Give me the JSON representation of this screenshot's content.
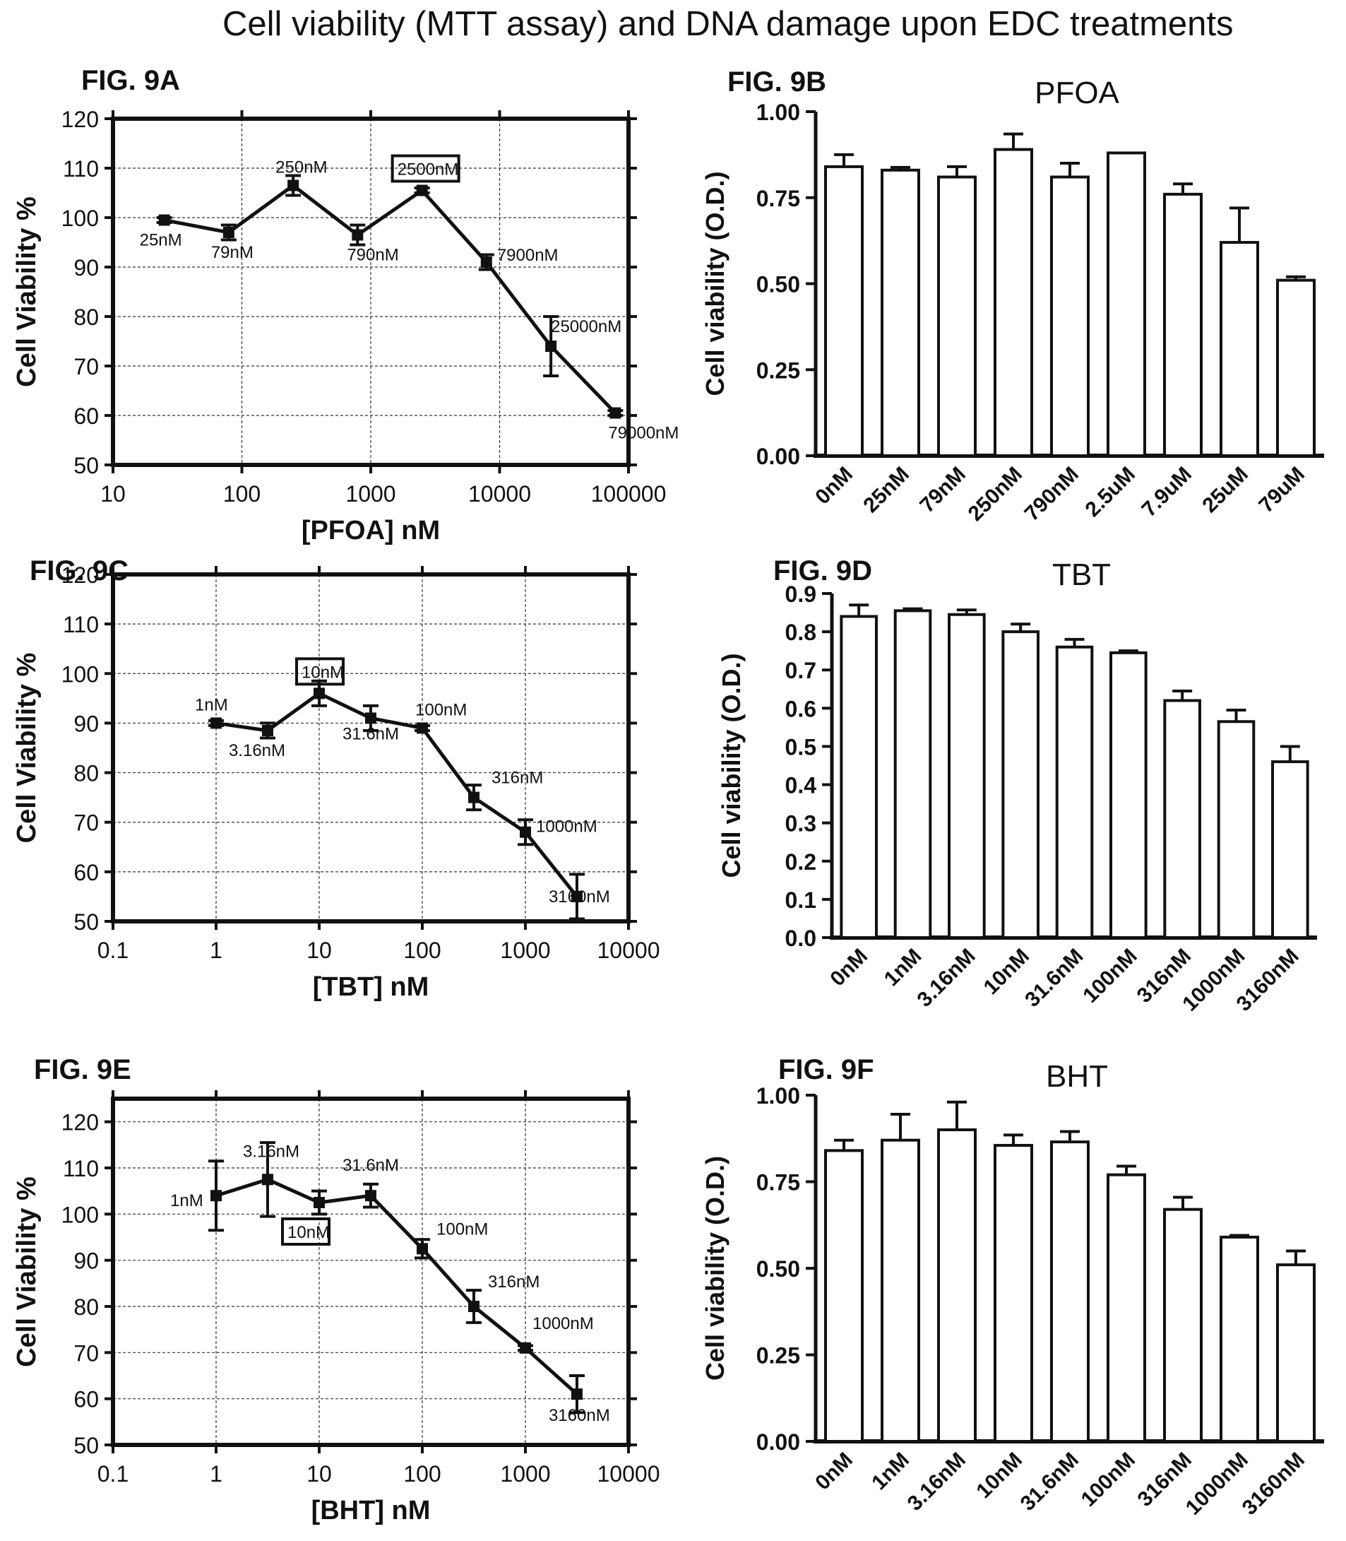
{
  "title": "Cell viability (MTT assay) and DNA damage upon EDC treatments",
  "chart_data": [
    {
      "id": "9A",
      "fig_label": "FIG. 9A",
      "type": "line",
      "title": "",
      "xlabel": "[PFOA] nM",
      "ylabel": "Cell Viability %",
      "xscale": "log",
      "xlim": [
        10,
        100000
      ],
      "ylim": [
        50,
        120
      ],
      "xticks": [
        10,
        100,
        1000,
        10000,
        100000
      ],
      "xtick_labels": [
        "10",
        "100",
        "1000",
        "10000",
        "100000"
      ],
      "yticks": [
        50,
        60,
        70,
        80,
        90,
        100,
        110,
        120
      ],
      "grid": true,
      "x": [
        25,
        79,
        250,
        790,
        2500,
        7900,
        25000,
        79000
      ],
      "y": [
        99.5,
        97,
        106.5,
        96.5,
        105.5,
        91,
        74,
        60.5
      ],
      "err": [
        0.5,
        1.5,
        2,
        2,
        0.5,
        1.5,
        6,
        0.5
      ],
      "point_labels": [
        "25nM",
        "79nM",
        "250nM",
        "790nM",
        "2500nM",
        "7900nM",
        "25000nM",
        "79000nM"
      ],
      "highlight_index": 4
    },
    {
      "id": "9B",
      "fig_label": "FIG. 9B",
      "type": "bar",
      "title": "PFOA",
      "xlabel": "",
      "ylabel": "Cell viability (O.D.)",
      "ylim": [
        0,
        1.0
      ],
      "yticks": [
        0,
        0.25,
        0.5,
        0.75,
        1.0
      ],
      "ytick_labels": [
        "0.00",
        "0.25",
        "0.50",
        "0.75",
        "1.00"
      ],
      "categories": [
        "0nM",
        "25nM",
        "79nM",
        "250nM",
        "790nM",
        "2.5uM",
        "7.9uM",
        "25uM",
        "79uM"
      ],
      "values": [
        0.84,
        0.83,
        0.81,
        0.89,
        0.81,
        0.88,
        0.76,
        0.62,
        0.51
      ],
      "err": [
        0.035,
        0.008,
        0.03,
        0.045,
        0.04,
        0.0,
        0.03,
        0.1,
        0.01
      ]
    },
    {
      "id": "9C",
      "fig_label": "FIG. 9C",
      "type": "line",
      "title": "",
      "xlabel": "[TBT] nM",
      "ylabel": "Cell Viability %",
      "xscale": "log",
      "xlim": [
        0.1,
        10000
      ],
      "ylim": [
        50,
        120
      ],
      "xticks": [
        0.1,
        1,
        10,
        100,
        1000,
        10000
      ],
      "xtick_labels": [
        "0.1",
        "1",
        "10",
        "100",
        "1000",
        "10000"
      ],
      "yticks": [
        50,
        60,
        70,
        80,
        90,
        100,
        110,
        120
      ],
      "grid": true,
      "x": [
        1,
        3.16,
        10,
        31.6,
        100,
        316,
        1000,
        3160
      ],
      "y": [
        90,
        88.5,
        96,
        91,
        89,
        75,
        68,
        55
      ],
      "err": [
        0.5,
        1.5,
        2.5,
        2.5,
        0.5,
        2.5,
        2.5,
        4.5
      ],
      "point_labels": [
        "1nM",
        "3.16nM",
        "10nM",
        "31.6nM",
        "100nM",
        "316nM",
        "1000nM",
        "3160nM"
      ],
      "highlight_index": 2
    },
    {
      "id": "9D",
      "fig_label": "FIG. 9D",
      "type": "bar",
      "title": "TBT",
      "xlabel": "",
      "ylabel": "Cell viability (O.D.)",
      "ylim": [
        0,
        0.9
      ],
      "yticks": [
        0,
        0.1,
        0.2,
        0.3,
        0.4,
        0.5,
        0.6,
        0.7,
        0.8,
        0.9
      ],
      "ytick_labels": [
        "0.0",
        "0.1",
        "0.2",
        "0.3",
        "0.4",
        "0.5",
        "0.6",
        "0.7",
        "0.8",
        "0.9"
      ],
      "categories": [
        "0nM",
        "1nM",
        "3.16nM",
        "10nM",
        "31.6nM",
        "100nM",
        "316nM",
        "1000nM",
        "3160nM"
      ],
      "values": [
        0.84,
        0.855,
        0.845,
        0.8,
        0.76,
        0.745,
        0.62,
        0.565,
        0.46
      ],
      "err": [
        0.03,
        0.005,
        0.012,
        0.02,
        0.02,
        0.005,
        0.025,
        0.03,
        0.04
      ]
    },
    {
      "id": "9E",
      "fig_label": "FIG. 9E",
      "type": "line",
      "title": "",
      "xlabel": "[BHT] nM",
      "ylabel": "Cell Viability %",
      "xscale": "log",
      "xlim": [
        0.1,
        10000
      ],
      "ylim": [
        50,
        125
      ],
      "xticks": [
        0.1,
        1,
        10,
        100,
        1000,
        10000
      ],
      "xtick_labels": [
        "0.1",
        "1",
        "10",
        "100",
        "1000",
        "10000"
      ],
      "yticks": [
        50,
        60,
        70,
        80,
        90,
        100,
        110,
        120
      ],
      "grid": true,
      "x": [
        1,
        3.16,
        10,
        31.6,
        100,
        316,
        1000,
        3160
      ],
      "y": [
        104,
        107.5,
        102.5,
        104,
        92.5,
        80,
        71,
        61
      ],
      "err": [
        7.5,
        8,
        2.5,
        2.5,
        2,
        3.5,
        0.5,
        4
      ],
      "point_labels": [
        "1nM",
        "3.16nM",
        "10nM",
        "31.6nM",
        "100nM",
        "316nM",
        "1000nM",
        "3160nM"
      ],
      "highlight_index": 2
    },
    {
      "id": "9F",
      "fig_label": "FIG. 9F",
      "type": "bar",
      "title": "BHT",
      "xlabel": "",
      "ylabel": "Cell viability (O.D.)",
      "ylim": [
        0,
        1.0
      ],
      "yticks": [
        0,
        0.25,
        0.5,
        0.75,
        1.0
      ],
      "ytick_labels": [
        "0.00",
        "0.25",
        "0.50",
        "0.75",
        "1.00"
      ],
      "categories": [
        "0nM",
        "1nM",
        "3.16nM",
        "10nM",
        "31.6nM",
        "100nM",
        "316nM",
        "1000nM",
        "3160nM"
      ],
      "values": [
        0.84,
        0.87,
        0.9,
        0.855,
        0.865,
        0.77,
        0.67,
        0.59,
        0.51
      ],
      "err": [
        0.03,
        0.075,
        0.08,
        0.03,
        0.03,
        0.025,
        0.035,
        0.005,
        0.04
      ]
    }
  ]
}
